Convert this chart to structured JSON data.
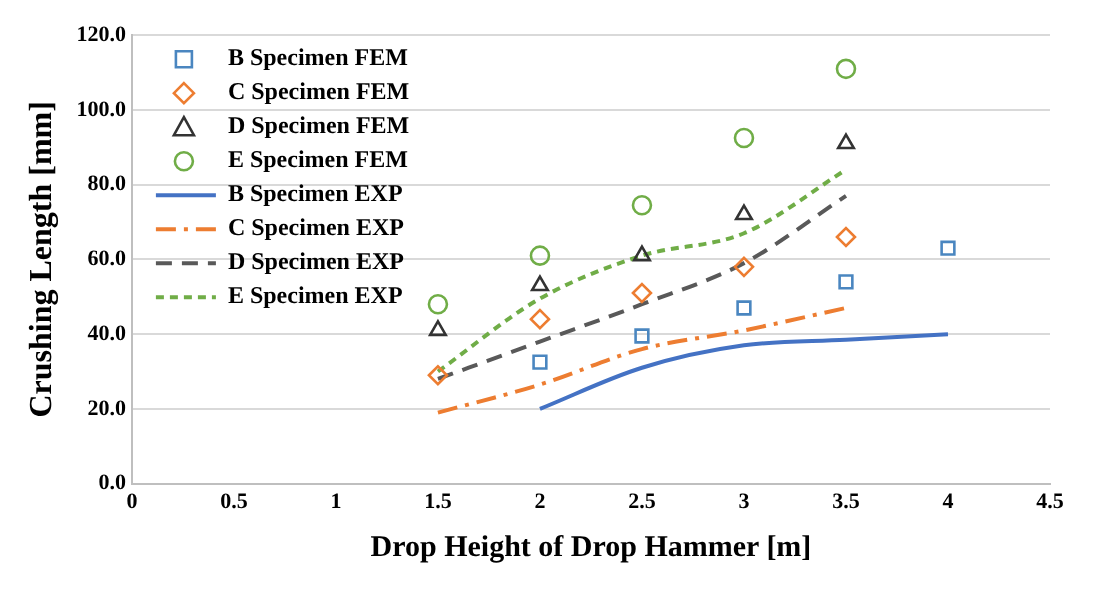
{
  "chart_data": {
    "type": "scatter",
    "xlabel": "Drop Height of Drop Hammer [m]",
    "ylabel": "Crushing Length [mm]",
    "xlim": [
      0,
      4.5
    ],
    "xticks": [
      0,
      0.5,
      1,
      1.5,
      2,
      2.5,
      3,
      3.5,
      4,
      4.5
    ],
    "ylim": [
      0,
      120
    ],
    "yticks": [
      {
        "value": 0,
        "label": "0.0"
      },
      {
        "value": 20,
        "label": "20.0"
      },
      {
        "value": 40,
        "label": "40.0"
      },
      {
        "value": 60,
        "label": "60.0"
      },
      {
        "value": 80,
        "label": "80.0"
      },
      {
        "value": 100,
        "label": "100.0"
      },
      {
        "value": 120,
        "label": "120.0"
      }
    ],
    "grid": "y",
    "legend": "top left",
    "series": [
      {
        "name": "B Specimen FEM",
        "type": "scatter",
        "marker": "square",
        "color": "#4a86c0",
        "x": [
          2,
          2.5,
          3,
          3.5,
          4
        ],
        "values": [
          32.5,
          39.5,
          47,
          54,
          63
        ]
      },
      {
        "name": "C Specimen FEM",
        "type": "scatter",
        "marker": "diamond",
        "color": "#ed7d31",
        "x": [
          1.5,
          2,
          2.5,
          3,
          3.5
        ],
        "values": [
          29,
          44,
          51,
          58,
          66
        ]
      },
      {
        "name": "D Specimen FEM",
        "type": "scatter",
        "marker": "triangle",
        "color": "#333333",
        "x": [
          1.5,
          2,
          2.5,
          3,
          3.5
        ],
        "values": [
          41,
          53,
          61,
          72,
          91
        ]
      },
      {
        "name": "E Specimen FEM",
        "type": "scatter",
        "marker": "circle",
        "color": "#70ad47",
        "x": [
          1.5,
          2,
          2.5,
          3,
          3.5
        ],
        "values": [
          48,
          61,
          74.5,
          92.5,
          111
        ]
      },
      {
        "name": "B Specimen EXP",
        "type": "line",
        "line_style": "solid",
        "color": "#4472c4",
        "x": [
          2,
          2.5,
          3,
          3.5,
          4
        ],
        "values": [
          20,
          31,
          37,
          38.5,
          40
        ]
      },
      {
        "name": "C Specimen EXP",
        "type": "line",
        "line_style": "dashdot",
        "color": "#ed7d31",
        "x": [
          1.5,
          2,
          2.5,
          3,
          3.5
        ],
        "values": [
          19,
          26.5,
          36,
          41,
          47
        ]
      },
      {
        "name": "D Specimen EXP",
        "type": "line",
        "line_style": "dashed",
        "color": "#595959",
        "x": [
          1.5,
          2,
          2.5,
          3,
          3.5
        ],
        "values": [
          28,
          38,
          48,
          59,
          77
        ]
      },
      {
        "name": "E Specimen EXP",
        "type": "line",
        "line_style": "dotted",
        "color": "#70ad47",
        "x": [
          1.5,
          2,
          2.5,
          3,
          3.5
        ],
        "values": [
          30,
          49.5,
          61,
          67,
          84
        ]
      }
    ]
  }
}
